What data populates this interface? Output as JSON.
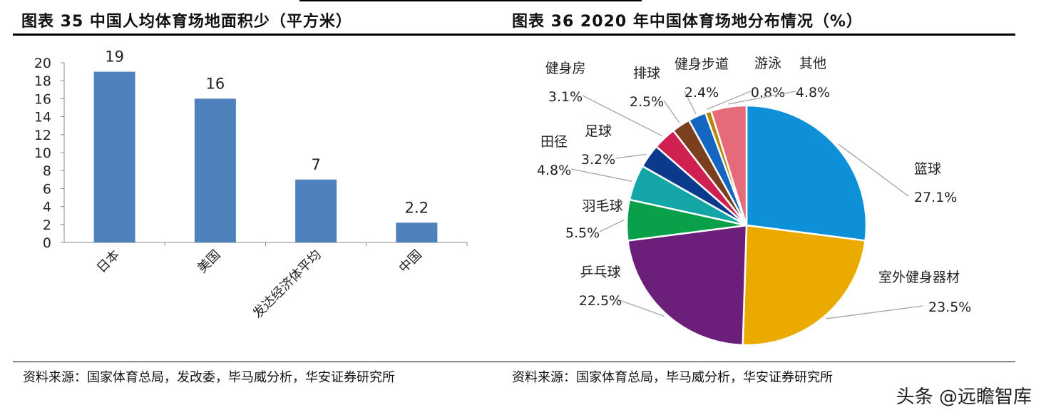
{
  "left": {
    "title": "图表 35  中国人均体育场地面积少（平方米）",
    "source": "资料来源：国家体育总局，发改委，毕马威分析，华安证券研究所"
  },
  "right": {
    "title": "图表 36 2020 年中国体育场地分布情况（%）",
    "source": "资料来源：国家体育总局，毕马威分析，华安证券研究所"
  },
  "watermark": "头条 @远瞻智库",
  "chart_data": [
    {
      "type": "bar",
      "title": "图表 35  中国人均体育场地面积少（平方米）",
      "categories": [
        "日本",
        "美国",
        "发达经济体平均",
        "中国"
      ],
      "values": [
        19,
        16,
        7,
        2.2
      ],
      "data_labels": [
        "19",
        "16",
        "7",
        "2.2"
      ],
      "ylim": [
        0,
        20
      ],
      "yticks": [
        0,
        2,
        4,
        6,
        8,
        10,
        12,
        14,
        16,
        18,
        20
      ],
      "xlabel": "",
      "ylabel": "",
      "grid": false,
      "color": "#4F81BD"
    },
    {
      "type": "pie",
      "title": "图表 36 2020 年中国体育场地分布情况（%）",
      "slices": [
        {
          "label": "篮球",
          "value": 27.1,
          "text": "27.1%",
          "color": "#0E90D8"
        },
        {
          "label": "室外健身器材",
          "value": 23.5,
          "text": "23.5%",
          "color": "#EAAA00"
        },
        {
          "label": "乒乓球",
          "value": 22.5,
          "text": "22.5%",
          "color": "#6B1F7A"
        },
        {
          "label": "羽毛球",
          "value": 5.5,
          "text": "5.5%",
          "color": "#0AA04A"
        },
        {
          "label": "田径",
          "value": 4.8,
          "text": "4.8%",
          "color": "#14A6A6"
        },
        {
          "label": "足球",
          "value": 3.2,
          "text": "3.2%",
          "color": "#0B3A8C"
        },
        {
          "label": "健身房",
          "value": 3.1,
          "text": "3.1%",
          "color": "#D0204F"
        },
        {
          "label": "排球",
          "value": 2.5,
          "text": "2.5%",
          "color": "#7A3F1E"
        },
        {
          "label": "健身步道",
          "value": 2.4,
          "text": "2.4%",
          "color": "#1566C0"
        },
        {
          "label": "游泳",
          "value": 0.8,
          "text": "0.8%",
          "color": "#B8860B"
        },
        {
          "label": "其他",
          "value": 4.8,
          "text": "4.8%",
          "color": "#E56B7A"
        }
      ]
    }
  ]
}
